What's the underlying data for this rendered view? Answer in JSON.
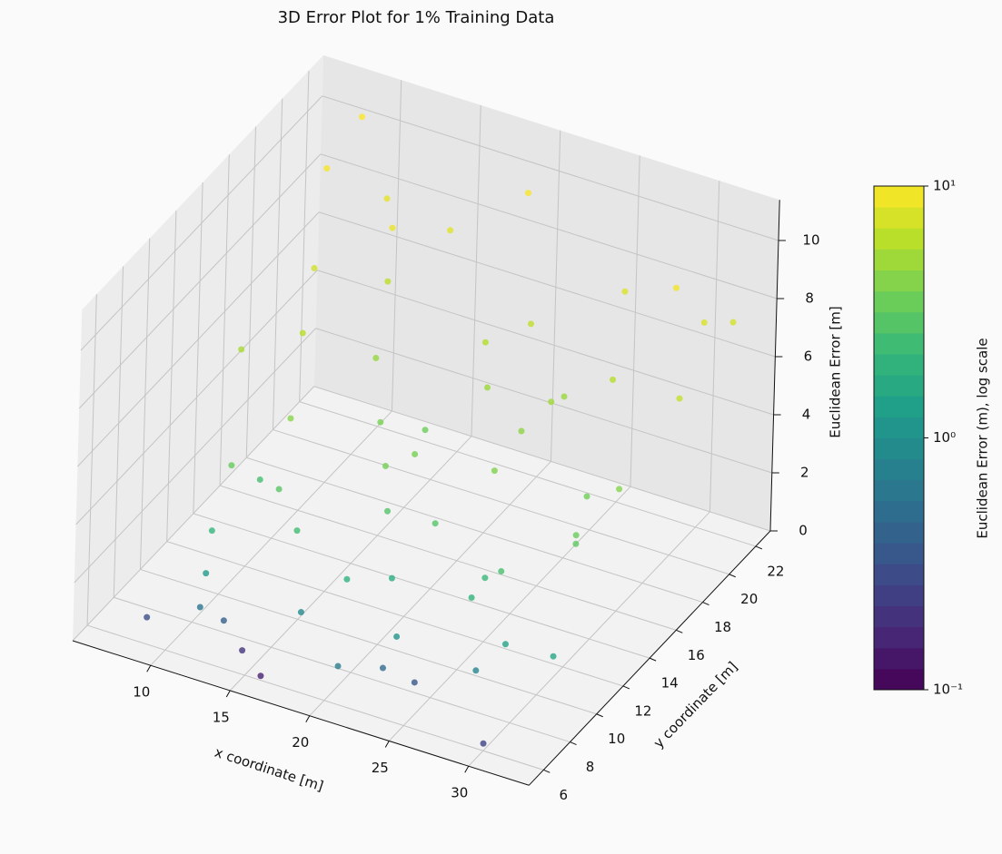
{
  "chart_data": {
    "type": "scatter3d",
    "title": "3D Error Plot for 1% Training Data",
    "x_label": "x coordinate [m]",
    "y_label": "y coordinate [m]",
    "z_label": "Euclidean Error [m]",
    "colorbar_label": "Euclidean Error (m), log scale",
    "colormap": "viridis",
    "colorbar_log": true,
    "colorbar_lim": [
      0.1,
      10
    ],
    "colorbar_ticks": [
      {
        "value": 0.1,
        "label": "10⁻¹"
      },
      {
        "value": 1,
        "label": "10⁰"
      },
      {
        "value": 10,
        "label": "10¹"
      }
    ],
    "xlim": [
      5.1,
      33.8
    ],
    "ylim": [
      4.9,
      23.1
    ],
    "zlim": [
      0,
      11.4
    ],
    "xticks": [
      10,
      15,
      20,
      25,
      30
    ],
    "yticks": [
      6,
      8,
      10,
      12,
      14,
      16,
      18,
      20,
      22
    ],
    "zticks": [
      0,
      2,
      4,
      6,
      8,
      10
    ],
    "grid": true,
    "x": [
      8,
      9,
      10,
      11,
      12,
      8.5,
      9.5,
      10.5,
      7,
      13,
      14,
      15,
      16,
      17,
      18,
      19,
      20,
      21,
      22,
      23,
      24,
      25,
      26,
      27,
      28,
      29,
      30,
      31,
      32,
      8,
      10,
      12,
      14,
      16,
      18,
      20,
      22,
      24,
      26,
      28,
      30,
      32,
      9,
      11,
      13,
      15,
      17,
      19,
      21,
      23,
      25,
      27,
      29,
      31,
      12,
      18,
      24,
      30,
      10,
      20
    ],
    "y": [
      20,
      18,
      16,
      14,
      12,
      22,
      10,
      8,
      15,
      19,
      7,
      21,
      9,
      17,
      13,
      22,
      11,
      20,
      8,
      15,
      18,
      12,
      21,
      9,
      16,
      14,
      20,
      10,
      18,
      7,
      9,
      8,
      11,
      6,
      10,
      7,
      9,
      8,
      12,
      10,
      6,
      22,
      12,
      21,
      18,
      16,
      14,
      19,
      13,
      17,
      11,
      19,
      14,
      21,
      20,
      15,
      19,
      16,
      13,
      18
    ],
    "z": [
      9.5,
      7.2,
      6.1,
      4.3,
      3.0,
      10.4,
      2.1,
      0.6,
      5.5,
      8.8,
      0.2,
      8.1,
      0.9,
      3.5,
      2.8,
      9.6,
      1.8,
      6.4,
      0.5,
      4.1,
      5.2,
      2.2,
      7.9,
      0.8,
      3.6,
      3.1,
      9.2,
      1.5,
      6.7,
      0.3,
      1.2,
      0.4,
      2.4,
      0.15,
      1.9,
      0.7,
      1.1,
      0.35,
      2.6,
      1.4,
      0.25,
      7.4,
      3.3,
      8.5,
      4.8,
      3.9,
      3.7,
      5.9,
      2.9,
      4.5,
      2.0,
      6.0,
      3.4,
      7.7,
      6.3,
      3.8,
      4.9,
      4.2,
      2.5,
      5.0
    ]
  }
}
